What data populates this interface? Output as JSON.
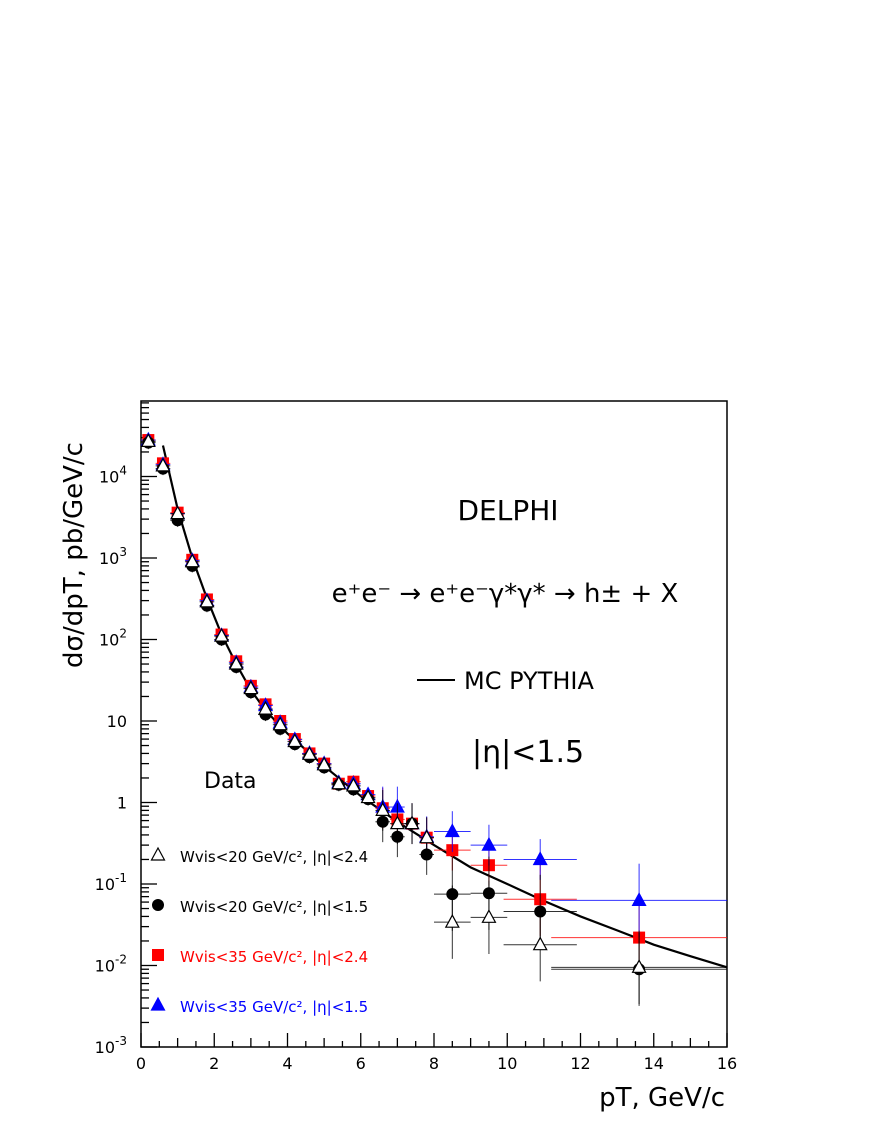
{
  "chart_data": {
    "type": "scatter",
    "xlabel": "pT, GeV/c",
    "ylabel": "dσ/dpT, pb/GeV/c",
    "xlim": [
      0,
      16
    ],
    "ylim": [
      0.001,
      85000
    ],
    "yscale": "log",
    "x_ticks": [
      "0",
      "2",
      "4",
      "6",
      "8",
      "10",
      "12",
      "14",
      "16"
    ],
    "y_ticks": [
      "10^-3",
      "10^-2",
      "10^-1",
      "1",
      "10",
      "10^2",
      "10^3",
      "10^4"
    ],
    "annotations": {
      "experiment": "DELPHI",
      "process": "e⁺e⁻ → e⁺e⁻γ*γ* → h± + X",
      "mc_label": "MC PYTHIA",
      "cut": "|η|<1.5",
      "data_label": "Data"
    },
    "x": [
      0.2,
      0.6,
      1.0,
      1.4,
      1.8,
      2.2,
      2.6,
      3.0,
      3.4,
      3.8,
      4.2,
      4.6,
      5.0,
      5.4,
      5.8,
      6.2,
      6.6,
      7.0,
      7.4,
      7.8,
      8.5,
      9.5,
      10.9,
      13.6
    ],
    "x_halfwidth": [
      0.2,
      0.2,
      0.2,
      0.2,
      0.2,
      0.2,
      0.2,
      0.2,
      0.2,
      0.2,
      0.2,
      0.2,
      0.2,
      0.2,
      0.2,
      0.2,
      0.2,
      0.2,
      0.2,
      0.2,
      0.5,
      0.5,
      1.0,
      2.4
    ],
    "series": [
      {
        "name": "Wvis<20 GeV/c², |η|<2.4",
        "marker": "open-triangle",
        "color": "#000000",
        "values": [
          27000,
          13500,
          3500,
          900,
          290,
          110,
          50,
          25,
          14,
          9,
          5.6,
          3.9,
          2.9,
          1.7,
          1.6,
          1.15,
          0.8,
          0.55,
          0.55,
          0.37,
          0.034,
          0.039,
          0.018,
          0.0095
        ]
      },
      {
        "name": "Wvis<20 GeV/c², |η|<1.5",
        "marker": "circle",
        "color": "#000000",
        "values": [
          26000,
          12500,
          2900,
          800,
          260,
          100,
          46,
          22.5,
          12,
          8,
          5.2,
          3.6,
          2.7,
          1.65,
          1.45,
          1.1,
          0.58,
          0.38,
          0.55,
          0.23,
          0.075,
          0.077,
          0.046,
          0.009
        ]
      },
      {
        "name": "Wvis<35 GeV/c², |η|<2.4",
        "marker": "square",
        "color": "#ff0000",
        "values": [
          28000,
          14500,
          3600,
          950,
          310,
          115,
          54,
          27,
          16,
          10,
          6,
          4,
          3,
          1.7,
          1.8,
          1.2,
          0.85,
          0.62,
          0.55,
          0.37,
          0.26,
          0.17,
          0.065,
          0.022
        ]
      },
      {
        "name": "Wvis<35 GeV/c², |η|<1.5",
        "marker": "triangle",
        "color": "#0000ff",
        "values": [
          28000,
          14000,
          3500,
          930,
          300,
          112,
          52,
          26,
          15.5,
          9.5,
          5.9,
          4,
          3,
          1.75,
          1.7,
          1.25,
          0.88,
          0.88,
          0.55,
          0.38,
          0.44,
          0.3,
          0.2,
          0.063
        ]
      }
    ],
    "mc_curve": {
      "name": "MC PYTHIA",
      "color": "#000000",
      "x": [
        0.6,
        1.0,
        1.4,
        1.8,
        2.2,
        2.6,
        3.0,
        3.4,
        4,
        5,
        6,
        7,
        8,
        9,
        10,
        11,
        12,
        13,
        14,
        15,
        16
      ],
      "y": [
        24000,
        4000,
        1000,
        320,
        115,
        50,
        24,
        13.5,
        7,
        2.8,
        1.2,
        0.58,
        0.3,
        0.16,
        0.1,
        0.062,
        0.04,
        0.027,
        0.018,
        0.013,
        0.0095
      ]
    },
    "legend_placement": "bottom-left",
    "grid": false
  }
}
